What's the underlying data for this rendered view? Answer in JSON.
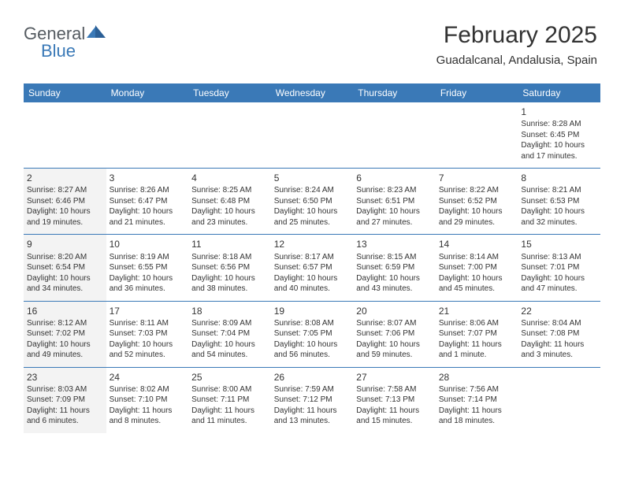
{
  "logo": {
    "text1": "General",
    "text2": "Blue"
  },
  "header": {
    "month": "February 2025",
    "location": "Guadalcanal, Andalusia, Spain"
  },
  "colors": {
    "header_bg": "#3a79b7",
    "header_text": "#ffffff",
    "week_border": "#3a79b7",
    "dim_bg": "#f3f3f3",
    "text": "#333333"
  },
  "dayNames": [
    "Sunday",
    "Monday",
    "Tuesday",
    "Wednesday",
    "Thursday",
    "Friday",
    "Saturday"
  ],
  "weeks": [
    [
      {
        "empty": true
      },
      {
        "empty": true
      },
      {
        "empty": true
      },
      {
        "empty": true
      },
      {
        "empty": true
      },
      {
        "empty": true
      },
      {
        "day": "1",
        "sunrise": "Sunrise: 8:28 AM",
        "sunset": "Sunset: 6:45 PM",
        "daylight": "Daylight: 10 hours and 17 minutes.",
        "dim": false
      }
    ],
    [
      {
        "day": "2",
        "sunrise": "Sunrise: 8:27 AM",
        "sunset": "Sunset: 6:46 PM",
        "daylight": "Daylight: 10 hours and 19 minutes.",
        "dim": true
      },
      {
        "day": "3",
        "sunrise": "Sunrise: 8:26 AM",
        "sunset": "Sunset: 6:47 PM",
        "daylight": "Daylight: 10 hours and 21 minutes.",
        "dim": false
      },
      {
        "day": "4",
        "sunrise": "Sunrise: 8:25 AM",
        "sunset": "Sunset: 6:48 PM",
        "daylight": "Daylight: 10 hours and 23 minutes.",
        "dim": false
      },
      {
        "day": "5",
        "sunrise": "Sunrise: 8:24 AM",
        "sunset": "Sunset: 6:50 PM",
        "daylight": "Daylight: 10 hours and 25 minutes.",
        "dim": false
      },
      {
        "day": "6",
        "sunrise": "Sunrise: 8:23 AM",
        "sunset": "Sunset: 6:51 PM",
        "daylight": "Daylight: 10 hours and 27 minutes.",
        "dim": false
      },
      {
        "day": "7",
        "sunrise": "Sunrise: 8:22 AM",
        "sunset": "Sunset: 6:52 PM",
        "daylight": "Daylight: 10 hours and 29 minutes.",
        "dim": false
      },
      {
        "day": "8",
        "sunrise": "Sunrise: 8:21 AM",
        "sunset": "Sunset: 6:53 PM",
        "daylight": "Daylight: 10 hours and 32 minutes.",
        "dim": false
      }
    ],
    [
      {
        "day": "9",
        "sunrise": "Sunrise: 8:20 AM",
        "sunset": "Sunset: 6:54 PM",
        "daylight": "Daylight: 10 hours and 34 minutes.",
        "dim": true
      },
      {
        "day": "10",
        "sunrise": "Sunrise: 8:19 AM",
        "sunset": "Sunset: 6:55 PM",
        "daylight": "Daylight: 10 hours and 36 minutes.",
        "dim": false
      },
      {
        "day": "11",
        "sunrise": "Sunrise: 8:18 AM",
        "sunset": "Sunset: 6:56 PM",
        "daylight": "Daylight: 10 hours and 38 minutes.",
        "dim": false
      },
      {
        "day": "12",
        "sunrise": "Sunrise: 8:17 AM",
        "sunset": "Sunset: 6:57 PM",
        "daylight": "Daylight: 10 hours and 40 minutes.",
        "dim": false
      },
      {
        "day": "13",
        "sunrise": "Sunrise: 8:15 AM",
        "sunset": "Sunset: 6:59 PM",
        "daylight": "Daylight: 10 hours and 43 minutes.",
        "dim": false
      },
      {
        "day": "14",
        "sunrise": "Sunrise: 8:14 AM",
        "sunset": "Sunset: 7:00 PM",
        "daylight": "Daylight: 10 hours and 45 minutes.",
        "dim": false
      },
      {
        "day": "15",
        "sunrise": "Sunrise: 8:13 AM",
        "sunset": "Sunset: 7:01 PM",
        "daylight": "Daylight: 10 hours and 47 minutes.",
        "dim": false
      }
    ],
    [
      {
        "day": "16",
        "sunrise": "Sunrise: 8:12 AM",
        "sunset": "Sunset: 7:02 PM",
        "daylight": "Daylight: 10 hours and 49 minutes.",
        "dim": true
      },
      {
        "day": "17",
        "sunrise": "Sunrise: 8:11 AM",
        "sunset": "Sunset: 7:03 PM",
        "daylight": "Daylight: 10 hours and 52 minutes.",
        "dim": false
      },
      {
        "day": "18",
        "sunrise": "Sunrise: 8:09 AM",
        "sunset": "Sunset: 7:04 PM",
        "daylight": "Daylight: 10 hours and 54 minutes.",
        "dim": false
      },
      {
        "day": "19",
        "sunrise": "Sunrise: 8:08 AM",
        "sunset": "Sunset: 7:05 PM",
        "daylight": "Daylight: 10 hours and 56 minutes.",
        "dim": false
      },
      {
        "day": "20",
        "sunrise": "Sunrise: 8:07 AM",
        "sunset": "Sunset: 7:06 PM",
        "daylight": "Daylight: 10 hours and 59 minutes.",
        "dim": false
      },
      {
        "day": "21",
        "sunrise": "Sunrise: 8:06 AM",
        "sunset": "Sunset: 7:07 PM",
        "daylight": "Daylight: 11 hours and 1 minute.",
        "dim": false
      },
      {
        "day": "22",
        "sunrise": "Sunrise: 8:04 AM",
        "sunset": "Sunset: 7:08 PM",
        "daylight": "Daylight: 11 hours and 3 minutes.",
        "dim": false
      }
    ],
    [
      {
        "day": "23",
        "sunrise": "Sunrise: 8:03 AM",
        "sunset": "Sunset: 7:09 PM",
        "daylight": "Daylight: 11 hours and 6 minutes.",
        "dim": true
      },
      {
        "day": "24",
        "sunrise": "Sunrise: 8:02 AM",
        "sunset": "Sunset: 7:10 PM",
        "daylight": "Daylight: 11 hours and 8 minutes.",
        "dim": false
      },
      {
        "day": "25",
        "sunrise": "Sunrise: 8:00 AM",
        "sunset": "Sunset: 7:11 PM",
        "daylight": "Daylight: 11 hours and 11 minutes.",
        "dim": false
      },
      {
        "day": "26",
        "sunrise": "Sunrise: 7:59 AM",
        "sunset": "Sunset: 7:12 PM",
        "daylight": "Daylight: 11 hours and 13 minutes.",
        "dim": false
      },
      {
        "day": "27",
        "sunrise": "Sunrise: 7:58 AM",
        "sunset": "Sunset: 7:13 PM",
        "daylight": "Daylight: 11 hours and 15 minutes.",
        "dim": false
      },
      {
        "day": "28",
        "sunrise": "Sunrise: 7:56 AM",
        "sunset": "Sunset: 7:14 PM",
        "daylight": "Daylight: 11 hours and 18 minutes.",
        "dim": false
      },
      {
        "empty": true
      }
    ]
  ]
}
